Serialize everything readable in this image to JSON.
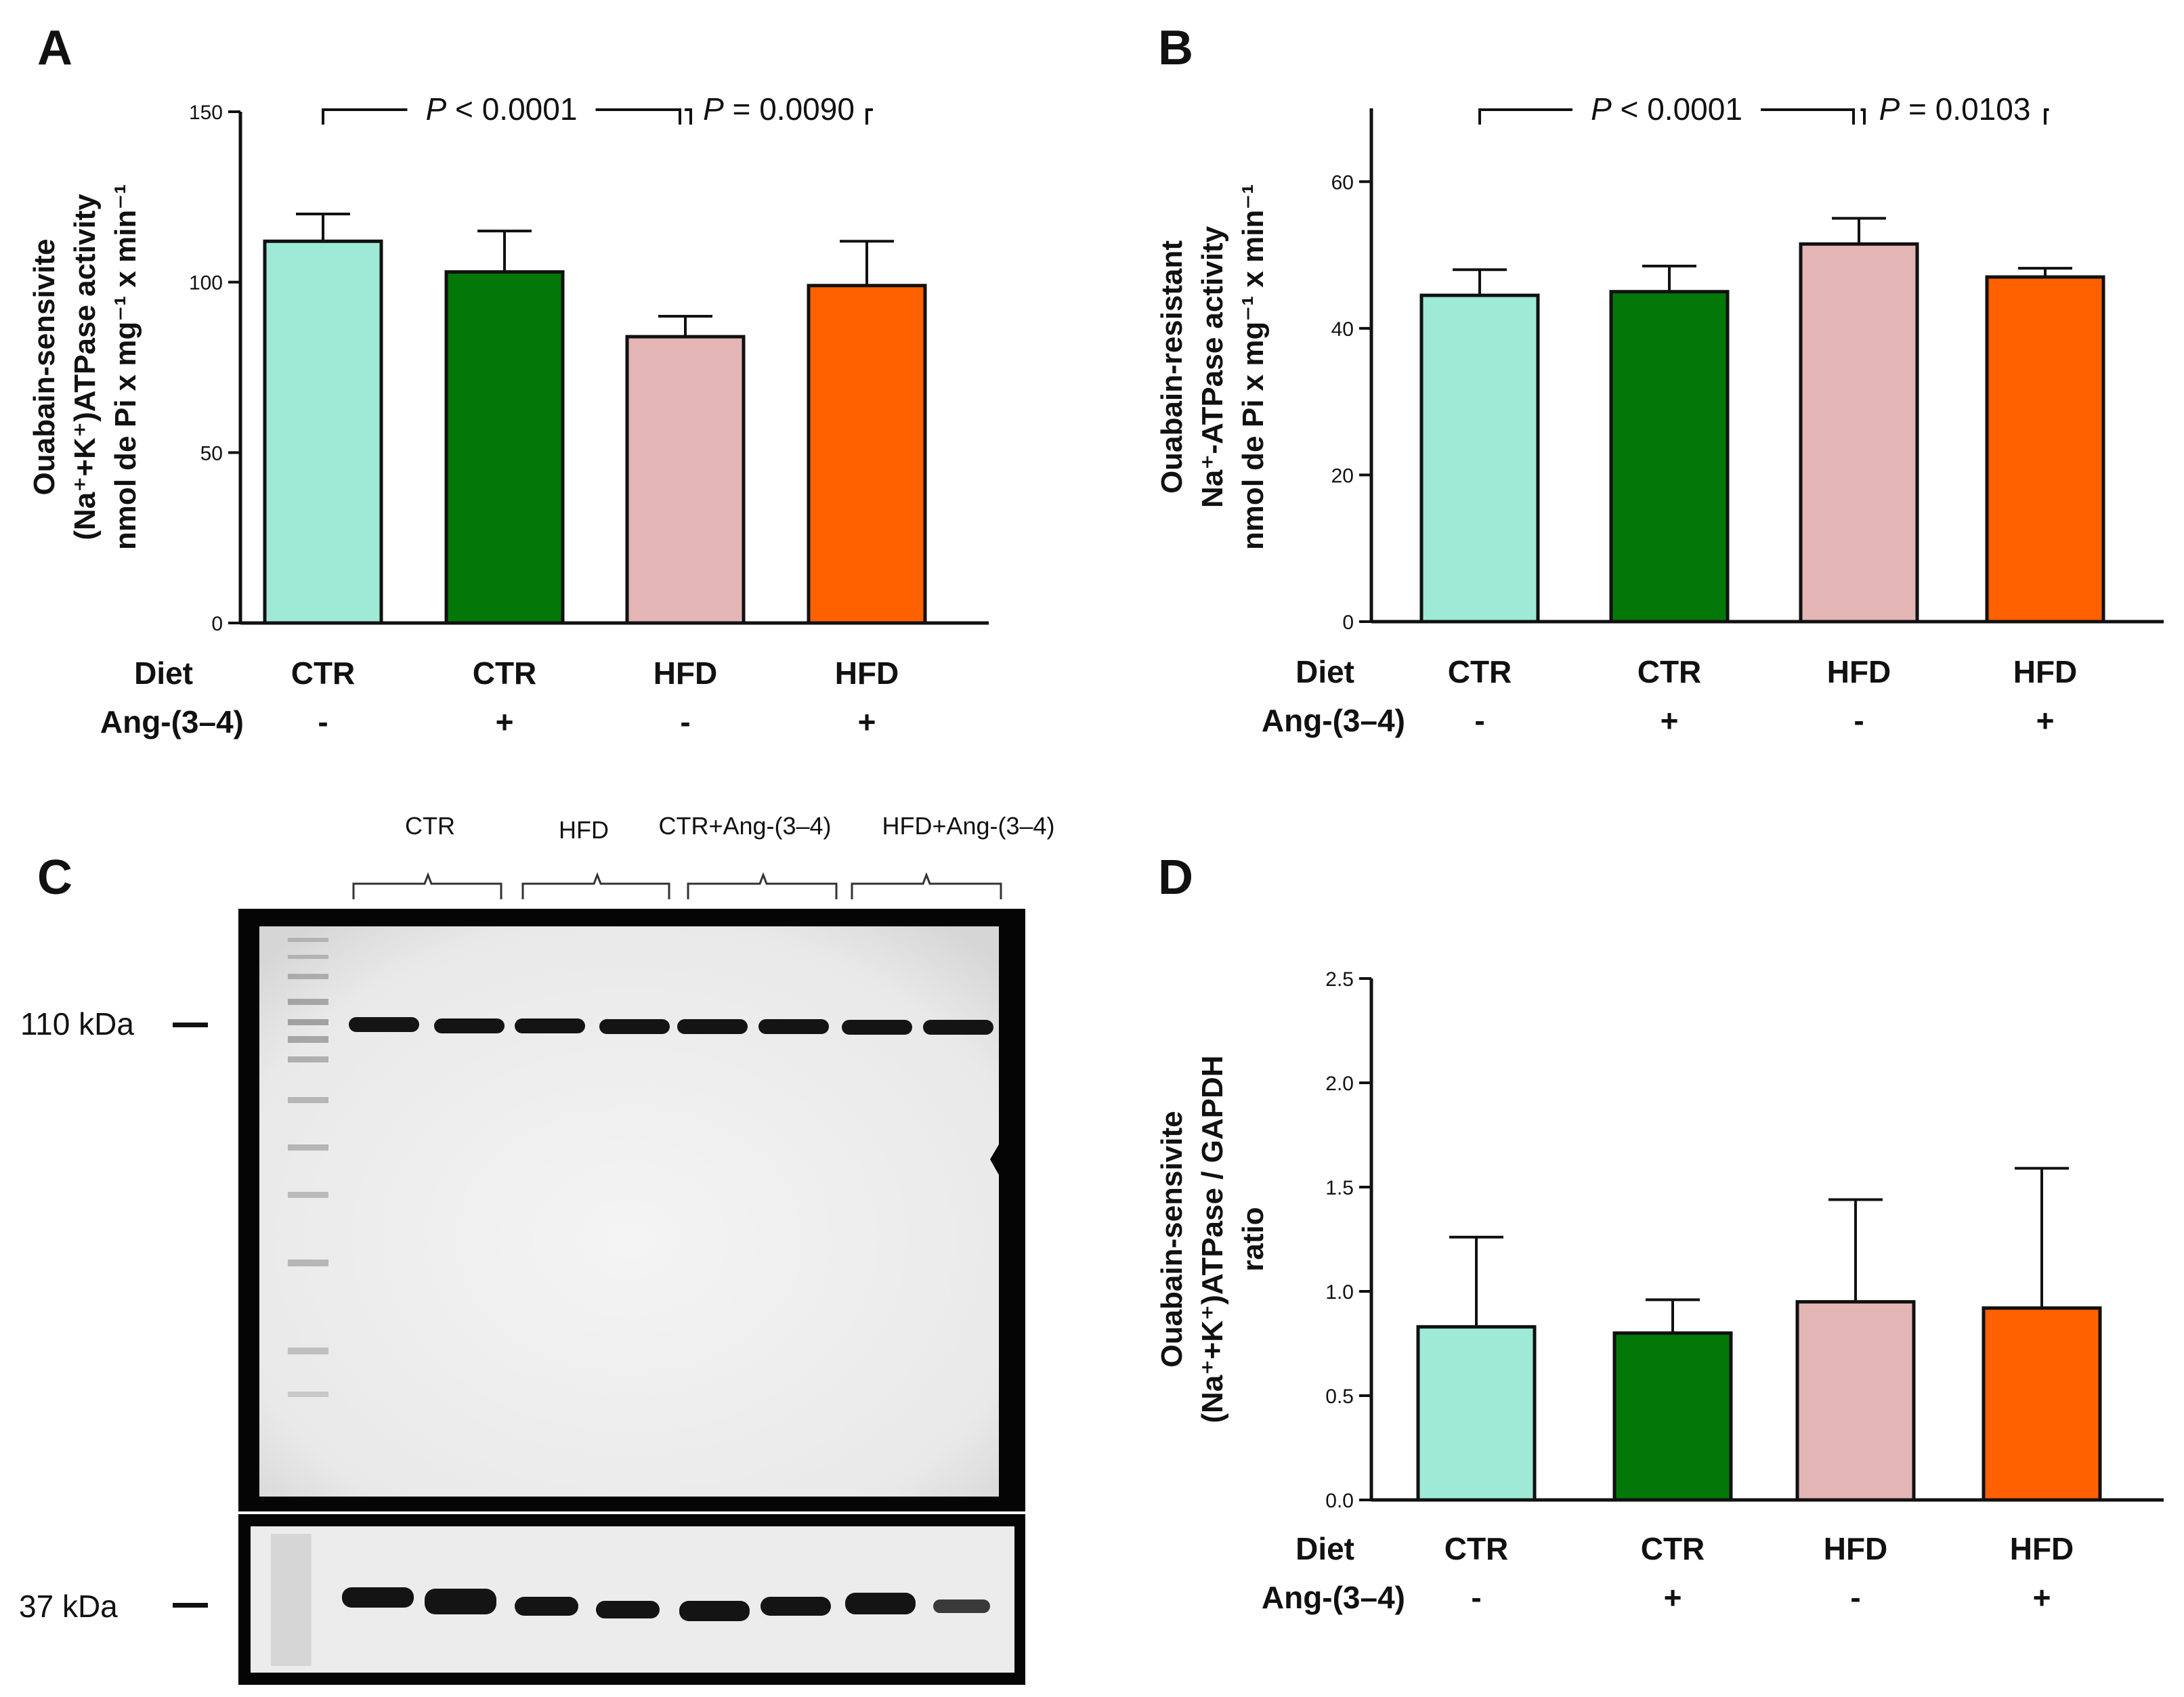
{
  "colors": {
    "CTR": "#9eead6",
    "CTR + Ang-(3–4)": "#047709",
    "HFD": "#e4b5b5",
    "HFD + Ang-(3–4)": "#ff6000"
  },
  "row_labels": {
    "diet": "Diet",
    "treatment": "Ang-(3–4)"
  },
  "groups": [
    {
      "diet": "CTR",
      "treatment": "-"
    },
    {
      "diet": "CTR",
      "treatment": "+"
    },
    {
      "diet": "HFD",
      "treatment": "-"
    },
    {
      "diet": "HFD",
      "treatment": "+"
    }
  ],
  "chart_data": [
    {
      "panel": "A",
      "type": "bar",
      "ylabel_lines": [
        "Ouabain-sensivite",
        "(Na⁺+K⁺)ATPase activity",
        "nmol de Pi x mg⁻¹ x min⁻¹"
      ],
      "ylim": [
        0,
        150
      ],
      "yticks": [
        0,
        50,
        100,
        150
      ],
      "values": [
        112,
        103,
        84,
        99
      ],
      "errors": [
        8,
        12,
        6,
        13
      ],
      "significance": [
        {
          "from": 0,
          "to": 2,
          "label": "P < 0.0001"
        },
        {
          "from": 2,
          "to": 3,
          "label": "P = 0.0090"
        }
      ]
    },
    {
      "panel": "B",
      "type": "bar",
      "ylabel_lines": [
        "Ouabain-resistant",
        "Na⁺-ATPase activity",
        "nmol de Pi x mg⁻¹ x min⁻¹"
      ],
      "ylim": [
        0,
        70
      ],
      "yticks": [
        0,
        20,
        40,
        60
      ],
      "values": [
        44.5,
        45,
        51.5,
        47
      ],
      "errors": [
        3.5,
        3.5,
        3.5,
        1.2
      ],
      "significance": [
        {
          "from": 0,
          "to": 2,
          "label": "P < 0.0001"
        },
        {
          "from": 2,
          "to": 3,
          "label": "P = 0.0103"
        }
      ]
    },
    {
      "panel": "D",
      "type": "bar",
      "ylabel_lines": [
        "Ouabain-sensivite",
        "(Na⁺+K⁺)ATPase / GAPDH",
        "ratio"
      ],
      "ylim": [
        0,
        2.5
      ],
      "yticks": [
        "0.0",
        "0.5",
        "1.0",
        "1.5",
        "2.0",
        "2.5"
      ],
      "values": [
        0.83,
        0.8,
        0.95,
        0.92
      ],
      "errors": [
        0.43,
        0.16,
        0.49,
        0.67
      ],
      "significance": []
    }
  ],
  "blot": {
    "panel": "C",
    "lane_groups": [
      "CTR",
      "HFD",
      "CTR+Ang-(3–4)",
      "HFD+Ang-(3–4)"
    ],
    "markers": [
      "110 kDa",
      "37 kDa"
    ]
  }
}
